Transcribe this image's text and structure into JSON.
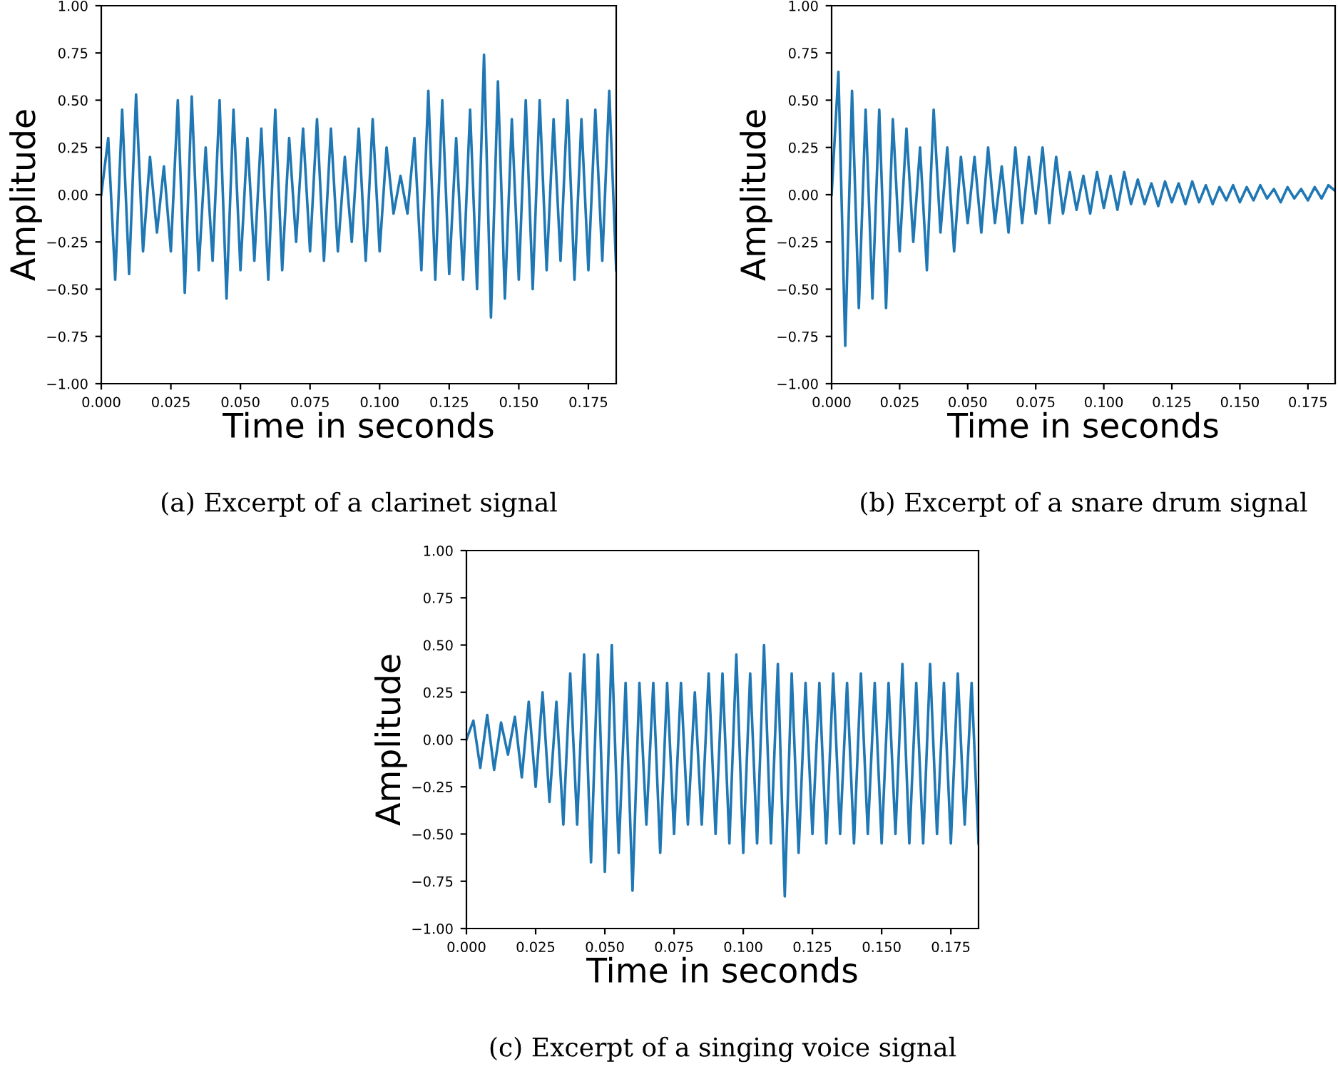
{
  "chart_data": [
    {
      "type": "line",
      "xlabel": "Time in seconds",
      "ylabel": "Amplitude",
      "annotations": [
        "(a) Excerpt of a clarinet signal"
      ],
      "x": [
        0,
        0.0025,
        0.005,
        0.0075,
        0.01,
        0.0125,
        0.015,
        0.0175,
        0.02,
        0.0225,
        0.025,
        0.0275,
        0.03,
        0.0325,
        0.035,
        0.0375,
        0.04,
        0.0425,
        0.045,
        0.0475,
        0.05,
        0.0525,
        0.055,
        0.0575,
        0.06,
        0.0625,
        0.065,
        0.0675,
        0.07,
        0.0725,
        0.075,
        0.0775,
        0.08,
        0.0825,
        0.085,
        0.0875,
        0.09,
        0.0925,
        0.095,
        0.0975,
        0.1,
        0.1025,
        0.105,
        0.1075,
        0.11,
        0.1125,
        0.115,
        0.1175,
        0.12,
        0.1225,
        0.125,
        0.1275,
        0.13,
        0.1325,
        0.135,
        0.1375,
        0.14,
        0.1425,
        0.145,
        0.1475,
        0.15,
        0.1525,
        0.155,
        0.1575,
        0.16,
        0.1625,
        0.165,
        0.1675,
        0.17,
        0.1725,
        0.175,
        0.1775,
        0.18,
        0.1825,
        0.185
      ],
      "series": [
        {
          "color": "#1f77b4",
          "values": [
            0.0,
            0.3,
            -0.45,
            0.45,
            -0.42,
            0.53,
            -0.3,
            0.2,
            -0.2,
            0.15,
            -0.3,
            0.5,
            -0.52,
            0.52,
            -0.4,
            0.25,
            -0.35,
            0.5,
            -0.55,
            0.45,
            -0.4,
            0.3,
            -0.35,
            0.35,
            -0.45,
            0.45,
            -0.4,
            0.3,
            -0.25,
            0.35,
            -0.3,
            0.4,
            -0.35,
            0.35,
            -0.3,
            0.2,
            -0.25,
            0.35,
            -0.35,
            0.4,
            -0.3,
            0.25,
            -0.1,
            0.1,
            -0.1,
            0.3,
            -0.4,
            0.55,
            -0.45,
            0.5,
            -0.42,
            0.3,
            -0.45,
            0.45,
            -0.5,
            0.74,
            -0.65,
            0.6,
            -0.55,
            0.4,
            -0.45,
            0.5,
            -0.5,
            0.5,
            -0.4,
            0.4,
            -0.35,
            0.5,
            -0.45,
            0.4,
            -0.4,
            0.45,
            -0.35,
            0.55,
            -0.4
          ]
        }
      ],
      "xlim": [
        0,
        0.185
      ],
      "ylim": [
        -1,
        1
      ],
      "xticks": [
        {
          "value": 0,
          "label": "0.000"
        },
        {
          "value": 0.025,
          "label": "0.025"
        },
        {
          "value": 0.05,
          "label": "0.050"
        },
        {
          "value": 0.075,
          "label": "0.075"
        },
        {
          "value": 0.1,
          "label": "0.100"
        },
        {
          "value": 0.125,
          "label": "0.125"
        },
        {
          "value": 0.15,
          "label": "0.150"
        },
        {
          "value": 0.175,
          "label": "0.175"
        }
      ],
      "yticks": [
        {
          "value": -1,
          "label": "−1.00"
        },
        {
          "value": -0.75,
          "label": "−0.75"
        },
        {
          "value": -0.5,
          "label": "−0.50"
        },
        {
          "value": -0.25,
          "label": "−0.25"
        },
        {
          "value": 0,
          "label": "0.00"
        },
        {
          "value": 0.25,
          "label": "0.25"
        },
        {
          "value": 0.5,
          "label": "0.50"
        },
        {
          "value": 0.75,
          "label": "0.75"
        },
        {
          "value": 1,
          "label": "1.00"
        }
      ]
    },
    {
      "type": "line",
      "xlabel": "Time in seconds",
      "ylabel": "Amplitude",
      "annotations": [
        "(b) Excerpt of a snare drum signal"
      ],
      "x": [
        0,
        0.0025,
        0.005,
        0.0075,
        0.01,
        0.0125,
        0.015,
        0.0175,
        0.02,
        0.0225,
        0.025,
        0.0275,
        0.03,
        0.0325,
        0.035,
        0.0375,
        0.04,
        0.0425,
        0.045,
        0.0475,
        0.05,
        0.0525,
        0.055,
        0.0575,
        0.06,
        0.0625,
        0.065,
        0.0675,
        0.07,
        0.0725,
        0.075,
        0.0775,
        0.08,
        0.0825,
        0.085,
        0.0875,
        0.09,
        0.0925,
        0.095,
        0.0975,
        0.1,
        0.1025,
        0.105,
        0.1075,
        0.11,
        0.1125,
        0.115,
        0.1175,
        0.12,
        0.1225,
        0.125,
        0.1275,
        0.13,
        0.1325,
        0.135,
        0.1375,
        0.14,
        0.1425,
        0.145,
        0.1475,
        0.15,
        0.1525,
        0.155,
        0.1575,
        0.16,
        0.1625,
        0.165,
        0.1675,
        0.17,
        0.1725,
        0.175,
        0.1775,
        0.18,
        0.1825,
        0.185
      ],
      "series": [
        {
          "color": "#1f77b4",
          "values": [
            0.0,
            0.65,
            -0.8,
            0.55,
            -0.6,
            0.45,
            -0.55,
            0.45,
            -0.6,
            0.4,
            -0.3,
            0.35,
            -0.25,
            0.25,
            -0.4,
            0.45,
            -0.2,
            0.25,
            -0.3,
            0.2,
            -0.15,
            0.2,
            -0.2,
            0.25,
            -0.15,
            0.15,
            -0.2,
            0.25,
            -0.15,
            0.2,
            -0.1,
            0.25,
            -0.15,
            0.2,
            -0.1,
            0.12,
            -0.08,
            0.1,
            -0.1,
            0.12,
            -0.07,
            0.1,
            -0.08,
            0.12,
            -0.05,
            0.08,
            -0.05,
            0.06,
            -0.06,
            0.07,
            -0.04,
            0.06,
            -0.05,
            0.07,
            -0.04,
            0.05,
            -0.05,
            0.04,
            -0.03,
            0.05,
            -0.04,
            0.04,
            -0.03,
            0.05,
            -0.02,
            0.03,
            -0.04,
            0.04,
            -0.02,
            0.03,
            -0.03,
            0.04,
            -0.02,
            0.05,
            0.02
          ]
        }
      ],
      "xlim": [
        0,
        0.185
      ],
      "ylim": [
        -1,
        1
      ],
      "xticks": [
        {
          "value": 0,
          "label": "0.000"
        },
        {
          "value": 0.025,
          "label": "0.025"
        },
        {
          "value": 0.05,
          "label": "0.050"
        },
        {
          "value": 0.075,
          "label": "0.075"
        },
        {
          "value": 0.1,
          "label": "0.100"
        },
        {
          "value": 0.125,
          "label": "0.125"
        },
        {
          "value": 0.15,
          "label": "0.150"
        },
        {
          "value": 0.175,
          "label": "0.175"
        }
      ],
      "yticks": [
        {
          "value": -1,
          "label": "−1.00"
        },
        {
          "value": -0.75,
          "label": "−0.75"
        },
        {
          "value": -0.5,
          "label": "−0.50"
        },
        {
          "value": -0.25,
          "label": "−0.25"
        },
        {
          "value": 0,
          "label": "0.00"
        },
        {
          "value": 0.25,
          "label": "0.25"
        },
        {
          "value": 0.5,
          "label": "0.50"
        },
        {
          "value": 0.75,
          "label": "0.75"
        },
        {
          "value": 1,
          "label": "1.00"
        }
      ]
    },
    {
      "type": "line",
      "xlabel": "Time in seconds",
      "ylabel": "Amplitude",
      "annotations": [
        "(c) Excerpt of a singing voice signal"
      ],
      "x": [
        0,
        0.0025,
        0.005,
        0.0075,
        0.01,
        0.0125,
        0.015,
        0.0175,
        0.02,
        0.0225,
        0.025,
        0.0275,
        0.03,
        0.0325,
        0.035,
        0.0375,
        0.04,
        0.0425,
        0.045,
        0.0475,
        0.05,
        0.0525,
        0.055,
        0.0575,
        0.06,
        0.0625,
        0.065,
        0.0675,
        0.07,
        0.0725,
        0.075,
        0.0775,
        0.08,
        0.0825,
        0.085,
        0.0875,
        0.09,
        0.0925,
        0.095,
        0.0975,
        0.1,
        0.1025,
        0.105,
        0.1075,
        0.11,
        0.1125,
        0.115,
        0.1175,
        0.12,
        0.1225,
        0.125,
        0.1275,
        0.13,
        0.1325,
        0.135,
        0.1375,
        0.14,
        0.1425,
        0.145,
        0.1475,
        0.15,
        0.1525,
        0.155,
        0.1575,
        0.16,
        0.1625,
        0.165,
        0.1675,
        0.17,
        0.1725,
        0.175,
        0.1775,
        0.18,
        0.1825,
        0.185
      ],
      "series": [
        {
          "color": "#1f77b4",
          "values": [
            0.0,
            0.1,
            -0.15,
            0.13,
            -0.16,
            0.09,
            -0.08,
            0.12,
            -0.2,
            0.2,
            -0.25,
            0.25,
            -0.33,
            0.2,
            -0.45,
            0.35,
            -0.45,
            0.45,
            -0.65,
            0.45,
            -0.7,
            0.5,
            -0.6,
            0.3,
            -0.8,
            0.3,
            -0.45,
            0.3,
            -0.6,
            0.3,
            -0.5,
            0.3,
            -0.45,
            0.25,
            -0.45,
            0.35,
            -0.5,
            0.35,
            -0.55,
            0.45,
            -0.6,
            0.35,
            -0.55,
            0.5,
            -0.55,
            0.4,
            -0.83,
            0.35,
            -0.6,
            0.3,
            -0.5,
            0.3,
            -0.55,
            0.35,
            -0.5,
            0.3,
            -0.55,
            0.35,
            -0.5,
            0.3,
            -0.55,
            0.3,
            -0.5,
            0.4,
            -0.55,
            0.3,
            -0.55,
            0.4,
            -0.5,
            0.3,
            -0.55,
            0.35,
            -0.45,
            0.3,
            -0.55
          ]
        }
      ],
      "xlim": [
        0,
        0.185
      ],
      "ylim": [
        -1,
        1
      ],
      "xticks": [
        {
          "value": 0,
          "label": "0.000"
        },
        {
          "value": 0.025,
          "label": "0.025"
        },
        {
          "value": 0.05,
          "label": "0.050"
        },
        {
          "value": 0.075,
          "label": "0.075"
        },
        {
          "value": 0.1,
          "label": "0.100"
        },
        {
          "value": 0.125,
          "label": "0.125"
        },
        {
          "value": 0.15,
          "label": "0.150"
        },
        {
          "value": 0.175,
          "label": "0.175"
        }
      ],
      "yticks": [
        {
          "value": -1,
          "label": "−1.00"
        },
        {
          "value": -0.75,
          "label": "−0.75"
        },
        {
          "value": -0.5,
          "label": "−0.50"
        },
        {
          "value": -0.25,
          "label": "−0.25"
        },
        {
          "value": 0,
          "label": "0.00"
        },
        {
          "value": 0.25,
          "label": "0.25"
        },
        {
          "value": 0.5,
          "label": "0.50"
        },
        {
          "value": 0.75,
          "label": "0.75"
        },
        {
          "value": 1,
          "label": "1.00"
        }
      ]
    }
  ]
}
